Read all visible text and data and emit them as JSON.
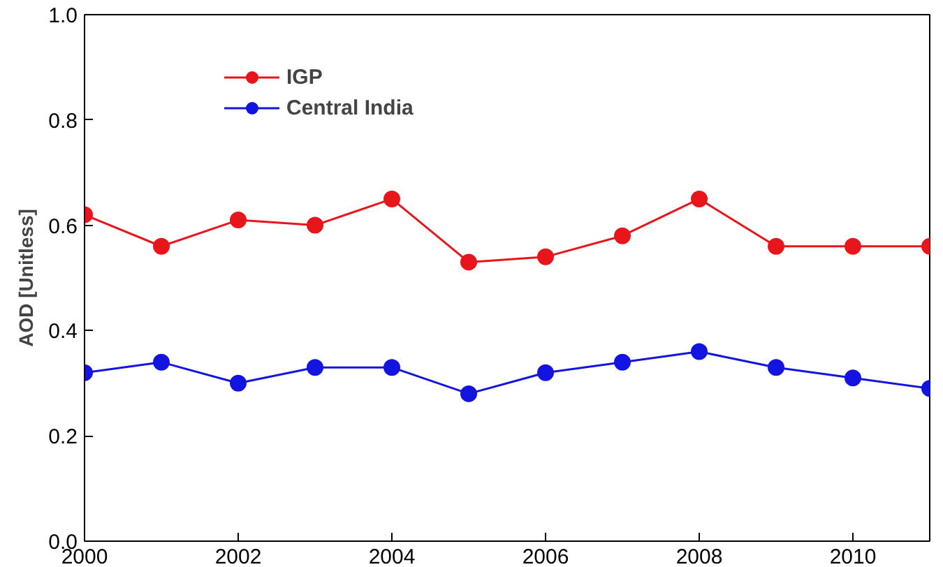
{
  "chart_data": {
    "type": "line",
    "ylabel": "AOD [Unitless]",
    "x": [
      2000,
      2001,
      2002,
      2003,
      2004,
      2005,
      2006,
      2007,
      2008,
      2009,
      2010,
      2011
    ],
    "series": [
      {
        "name": "IGP",
        "color": "#e8151b",
        "values": [
          0.62,
          0.56,
          0.61,
          0.6,
          0.65,
          0.53,
          0.54,
          0.58,
          0.65,
          0.56,
          0.56,
          0.56
        ]
      },
      {
        "name": "Central India",
        "color": "#1414e0",
        "values": [
          0.32,
          0.34,
          0.3,
          0.33,
          0.33,
          0.28,
          0.32,
          0.34,
          0.36,
          0.33,
          0.31,
          0.29
        ]
      }
    ],
    "xlim": [
      2000,
      2011
    ],
    "ylim": [
      0.0,
      1.0
    ],
    "xticks": [
      2000,
      2002,
      2004,
      2006,
      2008,
      2010
    ],
    "yticks": [
      {
        "value": 0,
        "label": "0.0"
      },
      {
        "value": 0.2,
        "label": "0.2"
      },
      {
        "value": 0.4,
        "label": "0.4"
      },
      {
        "value": 0.6,
        "label": "0.6"
      },
      {
        "value": 0.8,
        "label": "0.8"
      },
      {
        "value": 1,
        "label": "1.0"
      }
    ],
    "legend": "top left",
    "marker": "circle",
    "line_style": "solid",
    "grid": false
  }
}
